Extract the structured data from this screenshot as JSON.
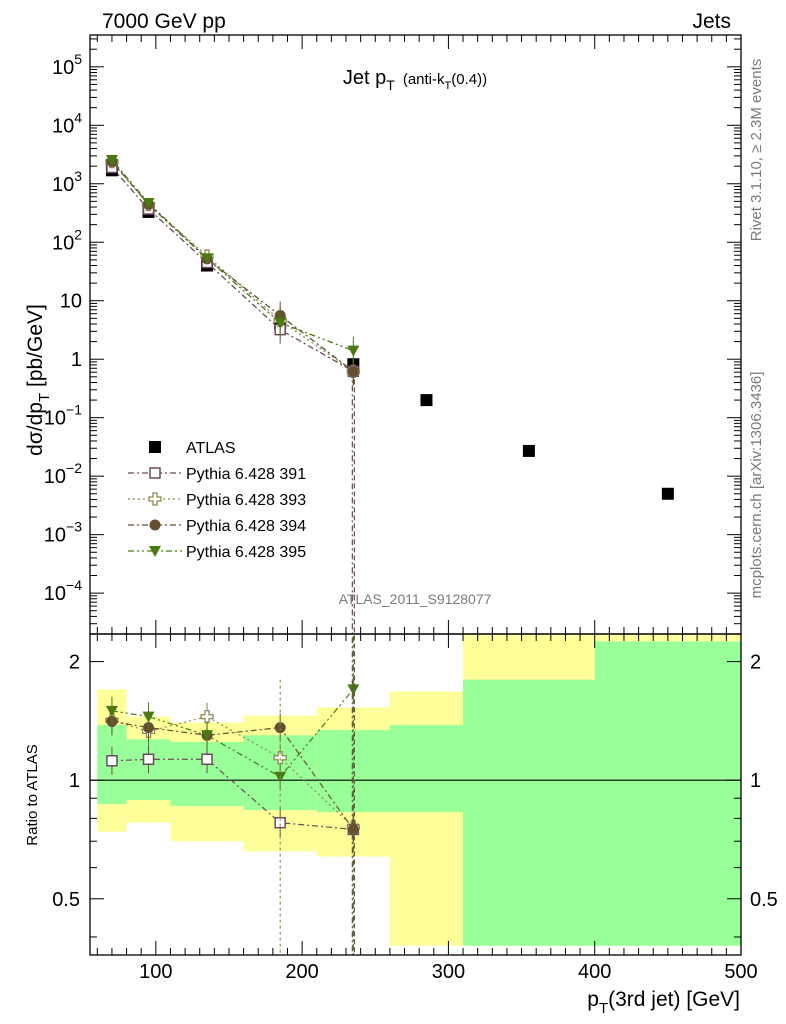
{
  "header": {
    "left": "7000 GeV pp",
    "right": "Jets"
  },
  "side": {
    "top": "Rivet 3.1.10, ≥ 2.3M events",
    "bottom": "mcplots.cern.ch [arXiv:1306.3436]"
  },
  "main_title": {
    "main": "Jet p",
    "main_sub": "T",
    "paren_open": "(anti-k",
    "paren_sub": "T",
    "paren_close": "(0.4))"
  },
  "watermark": "ATLAS_2011_S9128077",
  "axes_labels": {
    "top_y": "dσ/dp",
    "top_y_sub": "T",
    "top_y_unit": " [pb/GeV]",
    "ratio_y": "Ratio to ATLAS",
    "x": "p",
    "x_sub": "T",
    "x_rest": "(3rd jet) [GeV]"
  },
  "colors": {
    "data": "#000000",
    "p391": "#6b4a5a",
    "p393": "#8c8a4e",
    "p394": "#654f33",
    "p395": "#4a7a14",
    "band_inner": "#99ff99",
    "band_outer": "#ffff99"
  },
  "chart_data": [
    {
      "type": "scatter",
      "panel": "main",
      "xlabel": "pT(3rd jet) [GeV]",
      "ylabel": "dσ/dpT [pb/GeV]",
      "xlim": [
        55,
        500
      ],
      "ylim": [
        2e-05,
        350000
      ],
      "yscale": "log",
      "y_ticks": [
        {
          "v": 100000,
          "label": "10",
          "exp": "5"
        },
        {
          "v": 10000,
          "label": "10",
          "exp": "4"
        },
        {
          "v": 1000,
          "label": "10",
          "exp": "3"
        },
        {
          "v": 100,
          "label": "10",
          "exp": "2"
        },
        {
          "v": 10,
          "label": "10",
          "exp": ""
        },
        {
          "v": 1,
          "label": "1",
          "exp": ""
        },
        {
          "v": 0.1,
          "label": "10",
          "exp": "−1"
        },
        {
          "v": 0.01,
          "label": "10",
          "exp": "−2"
        },
        {
          "v": 0.001,
          "label": "10",
          "exp": "−3"
        },
        {
          "v": 0.0001,
          "label": "10",
          "exp": "−4"
        }
      ],
      "legend_position": "lower-left",
      "series": [
        {
          "name": "ATLAS",
          "marker": "square-filled",
          "x": [
            70,
            95,
            135,
            185,
            235,
            285,
            355,
            450
          ],
          "y": [
            1700,
            330,
            40,
            4.1,
            0.82,
            0.2,
            0.027,
            0.005
          ]
        },
        {
          "name": "Pythia 6.428 391",
          "marker": "square-open",
          "x": [
            70,
            95,
            135,
            185,
            235
          ],
          "y": [
            1900,
            370,
            45,
            3.2,
            0.62
          ]
        },
        {
          "name": "Pythia 6.428 393",
          "marker": "cross-open",
          "x": [
            70,
            95,
            135,
            185,
            235
          ],
          "y": [
            2400,
            440,
            58,
            4.6,
            0.62
          ]
        },
        {
          "name": "Pythia 6.428 394",
          "marker": "circle-filled",
          "x": [
            70,
            95,
            135,
            185,
            235
          ],
          "y": [
            2400,
            445,
            52,
            5.6,
            0.62
          ]
        },
        {
          "name": "Pythia 6.428 395",
          "marker": "triangle-down",
          "x": [
            70,
            95,
            135,
            185,
            235
          ],
          "y": [
            2550,
            470,
            53,
            4.2,
            1.4
          ]
        }
      ]
    },
    {
      "type": "scatter",
      "panel": "ratio",
      "ylabel": "Ratio to ATLAS",
      "xlim": [
        55,
        500
      ],
      "ylim": [
        0.36,
        2.35
      ],
      "yscale": "log",
      "x_ticks": [
        100,
        200,
        300,
        400,
        500
      ],
      "y_ticks": [
        {
          "v": 0.5,
          "label": "0.5"
        },
        {
          "v": 1,
          "label": "1"
        },
        {
          "v": 2,
          "label": "2"
        }
      ],
      "bands": {
        "edges": [
          60,
          80,
          110,
          160,
          210,
          260,
          310,
          400,
          500
        ],
        "inner_lo": [
          0.87,
          0.89,
          0.86,
          0.84,
          0.83,
          0.83,
          0.38,
          0.38
        ],
        "inner_hi": [
          1.38,
          1.27,
          1.25,
          1.3,
          1.34,
          1.38,
          1.8,
          2.25
        ],
        "outer_lo": [
          0.74,
          0.78,
          0.7,
          0.66,
          0.64,
          0.38,
          0.38,
          0.38
        ],
        "outer_hi": [
          1.7,
          1.45,
          1.4,
          1.46,
          1.53,
          1.68,
          2.35,
          2.35
        ]
      },
      "series": [
        {
          "name": "Pythia 6.428 391",
          "x": [
            70,
            95,
            135,
            185,
            235
          ],
          "y": [
            1.12,
            1.13,
            1.13,
            0.78,
            0.75
          ]
        },
        {
          "name": "Pythia 6.428 393",
          "x": [
            70,
            95,
            135,
            185,
            235
          ],
          "y": [
            1.42,
            1.33,
            1.45,
            1.14,
            0.76
          ]
        },
        {
          "name": "Pythia 6.428 394",
          "x": [
            70,
            95,
            135,
            185,
            235
          ],
          "y": [
            1.41,
            1.36,
            1.3,
            1.36,
            0.75
          ]
        },
        {
          "name": "Pythia 6.428 395",
          "x": [
            70,
            95,
            135,
            185,
            235
          ],
          "y": [
            1.5,
            1.45,
            1.3,
            1.02,
            1.7
          ]
        }
      ]
    }
  ]
}
